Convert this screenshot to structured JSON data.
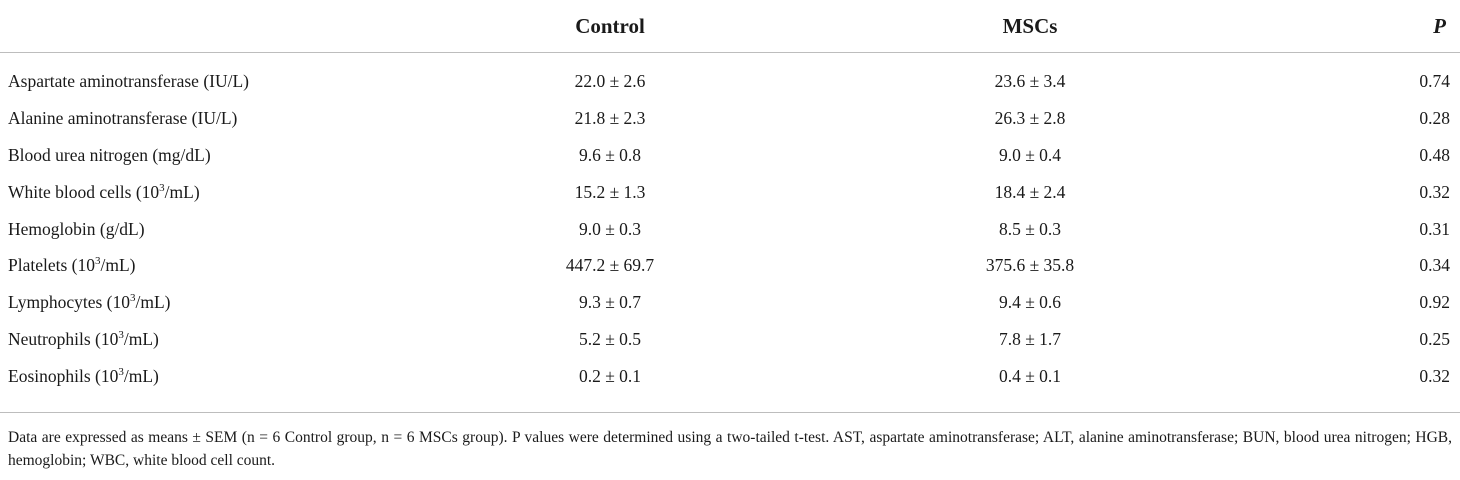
{
  "table": {
    "columns": [
      "",
      "Control",
      "MSCs",
      "P"
    ],
    "rows": [
      {
        "label_pre": "Aspartate aminotransferase (IU/L)",
        "label_sup": "",
        "label_post": "",
        "control": "22.0 ± 2.6",
        "mscs": "23.6 ± 3.4",
        "p": "0.74"
      },
      {
        "label_pre": "Alanine aminotransferase (IU/L)",
        "label_sup": "",
        "label_post": "",
        "control": "21.8 ± 2.3",
        "mscs": "26.3 ± 2.8",
        "p": "0.28"
      },
      {
        "label_pre": "Blood urea nitrogen (mg/dL)",
        "label_sup": "",
        "label_post": "",
        "control": "9.6 ± 0.8",
        "mscs": "9.0 ± 0.4",
        "p": "0.48"
      },
      {
        "label_pre": "White blood cells (10",
        "label_sup": "3",
        "label_post": "/mL)",
        "control": "15.2 ± 1.3",
        "mscs": "18.4 ± 2.4",
        "p": "0.32"
      },
      {
        "label_pre": "Hemoglobin (g/dL)",
        "label_sup": "",
        "label_post": "",
        "control": "9.0 ± 0.3",
        "mscs": "8.5 ± 0.3",
        "p": "0.31"
      },
      {
        "label_pre": "Platelets (10",
        "label_sup": "3",
        "label_post": "/mL)",
        "control": "447.2 ± 69.7",
        "mscs": "375.6 ± 35.8",
        "p": "0.34"
      },
      {
        "label_pre": "Lymphocytes (10",
        "label_sup": "3",
        "label_post": "/mL)",
        "control": "9.3 ± 0.7",
        "mscs": "9.4 ± 0.6",
        "p": "0.92"
      },
      {
        "label_pre": "Neutrophils (10",
        "label_sup": "3",
        "label_post": "/mL)",
        "control": "5.2 ± 0.5",
        "mscs": "7.8 ± 1.7",
        "p": "0.25"
      },
      {
        "label_pre": "Eosinophils (10",
        "label_sup": "3",
        "label_post": "/mL)",
        "control": "0.2 ± 0.1",
        "mscs": "0.4 ± 0.1",
        "p": "0.32"
      }
    ]
  },
  "footnote": "Data are expressed as means ± SEM (n = 6 Control group, n = 6 MSCs group). P values were determined using a two-tailed t-test. AST, aspartate aminotransferase; ALT, alanine aminotransferase; BUN, blood urea nitrogen; HGB, hemoglobin; WBC, white blood cell count."
}
